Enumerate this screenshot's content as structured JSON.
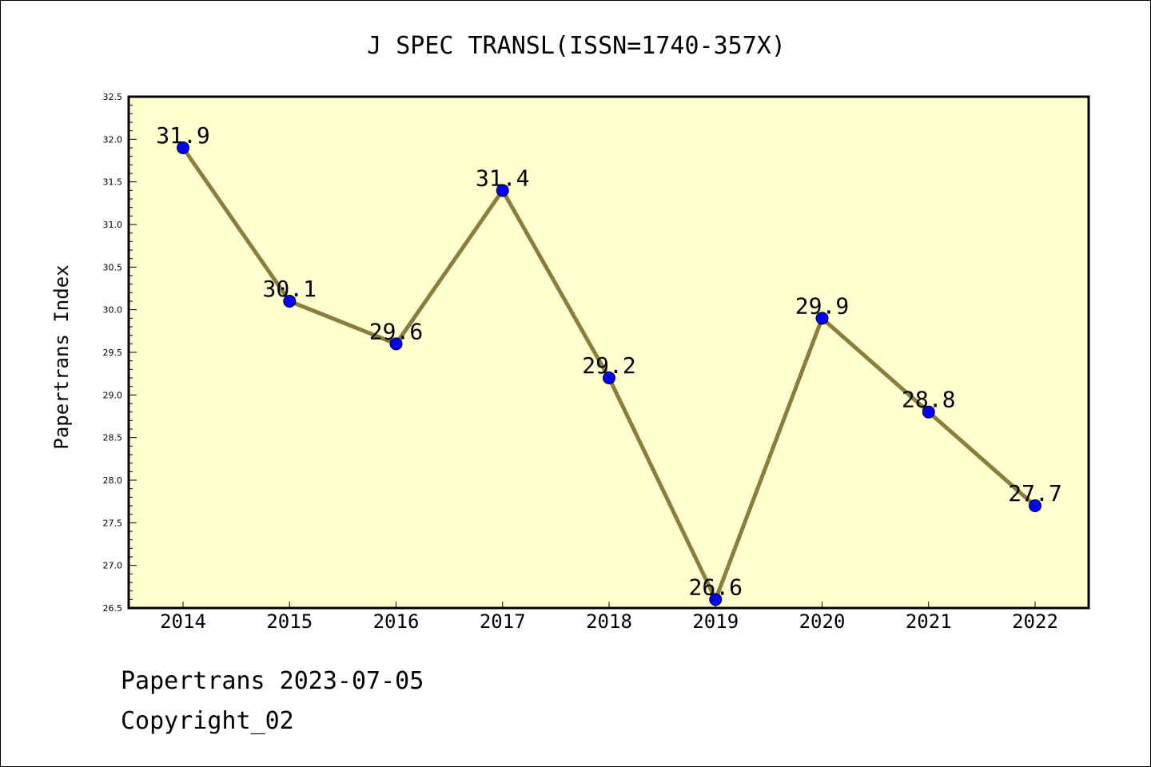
{
  "chart_data": {
    "type": "line",
    "title": "J SPEC TRANSL(ISSN=1740-357X)",
    "xlabel": "",
    "ylabel": "Papertrans Index",
    "categories": [
      "2014",
      "2015",
      "2016",
      "2017",
      "2018",
      "2019",
      "2020",
      "2021",
      "2022"
    ],
    "values": [
      31.9,
      30.1,
      29.6,
      31.4,
      29.2,
      26.6,
      29.9,
      28.8,
      27.7
    ],
    "data_labels": [
      "31.9",
      "30.1",
      "29.6",
      "31.4",
      "29.2",
      "26.6",
      "29.9",
      "28.8",
      "27.7"
    ],
    "ylim": [
      26.5,
      32.5
    ],
    "yticks": [
      "26.5",
      "27.0",
      "27.5",
      "28.0",
      "28.5",
      "29.0",
      "29.5",
      "30.0",
      "30.5",
      "31.0",
      "31.5",
      "32.0",
      "32.5"
    ],
    "grid": false,
    "legend": "none",
    "colors": {
      "plot_background": "#FFFFD0",
      "line": "#8B7D3A",
      "marker": "#0000FF"
    }
  },
  "footer": {
    "date_line": "Papertrans 2023-07-05",
    "copyright": "Copyright_02"
  }
}
